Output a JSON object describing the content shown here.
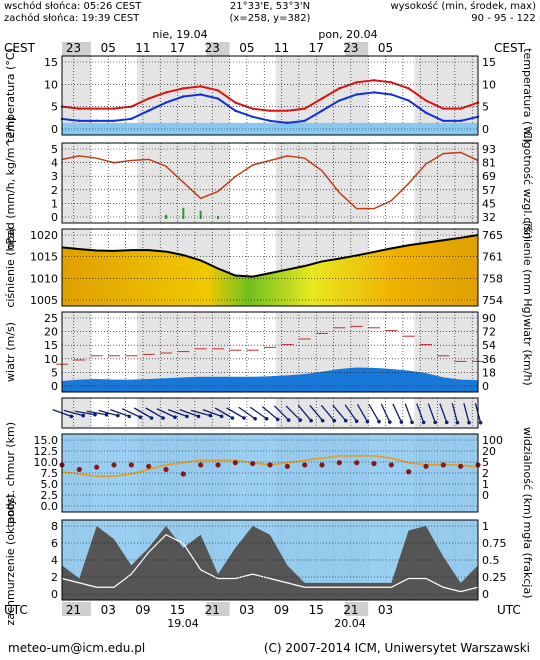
{
  "header": {
    "sunrise": "wschód słońca: 05:26 CEST",
    "sunset": "zachód słońca: 19:39 CEST",
    "coords": "21°33'E, 53°3'N",
    "grid": "(x=258, y=382)",
    "altitude_label": "wysokość (min, środek, max)",
    "altitude_values": "90 - 95 - 122 m"
  },
  "top_axis": {
    "tz": "CEST",
    "hours": [
      "23",
      "05",
      "11",
      "17",
      "23",
      "05",
      "11",
      "17",
      "23",
      "05"
    ],
    "days": [
      "nie, 19.04",
      "pon, 20.04"
    ]
  },
  "bottom_axis": {
    "tz": "UTC",
    "hours": [
      "21",
      "03",
      "09",
      "15",
      "21",
      "03",
      "09",
      "15",
      "21",
      "03"
    ],
    "days": [
      "19.04",
      "20.04"
    ]
  },
  "footer": {
    "email": "meteo-um@icm.edu.pl",
    "copyright": "(C) 2007-2014 ICM, Uniwersytet Warszawski"
  },
  "colors": {
    "sky": "#89c7ee",
    "night": "#cfcfcf",
    "day": "#ffffff",
    "temp": "#e01010",
    "dew": "#1030e0",
    "humidity": "#c0401a",
    "precip": "#2a9a2a",
    "pressure_line": "#000000",
    "wind_avg": "#1878d8",
    "visibility": "#e0a030"
  },
  "chart_data": [
    {
      "type": "line",
      "panel": "temperature",
      "ylabel": "temperatura (°C)",
      "ylabel_right": "temperatura (°C)",
      "ylim": [
        -2,
        15
      ],
      "yticks_left": [
        "15",
        "10",
        "5",
        "0"
      ],
      "yticks_right": [
        "15",
        "10",
        "5",
        "0"
      ],
      "x": [
        0,
        3,
        6,
        9,
        12,
        15,
        18,
        21,
        24,
        27,
        30,
        33,
        36,
        39,
        42,
        45,
        48,
        51,
        54,
        57,
        60,
        63,
        66,
        69,
        72
      ],
      "series": [
        {
          "values": [
            4,
            3.5,
            3.5,
            3.5,
            4,
            6,
            7.5,
            8.5,
            9,
            8,
            5,
            3.5,
            3,
            3,
            3.5,
            6,
            8.5,
            10,
            10.5,
            10,
            8.5,
            5.5,
            3.5,
            3.5,
            5
          ]
        },
        {
          "values": [
            1,
            0.5,
            0.5,
            0.5,
            1,
            3,
            5,
            6.5,
            7,
            6,
            3,
            1.5,
            0.5,
            0,
            0.5,
            3,
            5.5,
            7,
            7.5,
            7,
            5.5,
            2.5,
            0.5,
            0.5,
            1.5
          ]
        }
      ]
    },
    {
      "type": "line",
      "panel": "precipitation-humidity",
      "ylabel": "opad (mm/h, kg/m^2/h)",
      "ylabel_right": "wilgotność wzgl. (%)",
      "ylim": [
        0,
        5
      ],
      "yticks_left": [
        "5",
        "4",
        "3",
        "2",
        "1",
        "0"
      ],
      "yticks_right": [
        "93",
        "81",
        "69",
        "57",
        "45",
        "32"
      ],
      "x": [
        0,
        3,
        6,
        9,
        12,
        15,
        18,
        21,
        24,
        27,
        30,
        33,
        36,
        39,
        42,
        45,
        48,
        51,
        54,
        57,
        60,
        63,
        66,
        69,
        72
      ],
      "series": [
        {
          "values": [
            84,
            87,
            85,
            81,
            83,
            84,
            78,
            64,
            50,
            56,
            69,
            79,
            83,
            87,
            85,
            74,
            55,
            41,
            41,
            48,
            63,
            80,
            89,
            90,
            83
          ]
        },
        {
          "values": [
            0,
            0,
            0,
            0,
            0,
            0,
            0.3,
            0.8,
            0.6,
            0.2,
            0,
            0,
            0,
            0,
            0,
            0,
            0,
            0,
            0,
            0,
            0,
            0,
            0,
            0,
            0
          ]
        }
      ]
    },
    {
      "type": "area",
      "panel": "pressure",
      "ylabel": "ciśnienie (hPa)",
      "ylabel_right": "ciśnienie (mm Hg)",
      "ylim": [
        1003,
        1022
      ],
      "yticks_left": [
        "1020",
        "1015",
        "1010",
        "1005"
      ],
      "yticks_right": [
        "765",
        "761",
        "758",
        "754"
      ],
      "x": [
        0,
        3,
        6,
        9,
        12,
        15,
        18,
        21,
        24,
        27,
        30,
        33,
        36,
        39,
        42,
        45,
        48,
        51,
        54,
        57,
        60,
        63,
        66,
        69,
        72
      ],
      "values": [
        1018.5,
        1018,
        1017.6,
        1017.5,
        1017.7,
        1017.7,
        1017.3,
        1016.3,
        1014.8,
        1012.5,
        1010.5,
        1010.2,
        1011.2,
        1012.2,
        1013.2,
        1014.5,
        1015.3,
        1016.2,
        1017.2,
        1018.2,
        1019.1,
        1019.8,
        1020.5,
        1021.2,
        1022
      ]
    },
    {
      "type": "area",
      "panel": "wind",
      "ylabel": "wiatr (m/s)",
      "ylabel_right": "wiatr (km/h)",
      "ylim": [
        0,
        25
      ],
      "yticks_left": [
        "25",
        "20",
        "15",
        "10",
        "5",
        "0"
      ],
      "yticks_right": [
        "90",
        "72",
        "54",
        "36",
        "18",
        "0"
      ],
      "x": [
        0,
        3,
        6,
        9,
        12,
        15,
        18,
        21,
        24,
        27,
        30,
        33,
        36,
        39,
        42,
        45,
        48,
        51,
        54,
        57,
        60,
        63,
        66,
        69,
        72
      ],
      "series": [
        {
          "values": [
            2.5,
            3,
            3.2,
            3,
            3,
            3.2,
            3.5,
            3.8,
            4,
            4,
            4,
            4,
            4.2,
            4.5,
            5,
            5.8,
            6.8,
            7.3,
            7.2,
            6.8,
            6.2,
            5.3,
            3.8,
            3,
            2.8
          ]
        },
        {
          "values": [
            8.5,
            10,
            11.5,
            11.5,
            11.5,
            12,
            12.5,
            13,
            14,
            14,
            13.5,
            13.5,
            14.5,
            15.5,
            17.5,
            19.5,
            21.5,
            22,
            21.5,
            20.5,
            18.5,
            15.5,
            11.5,
            9.5,
            9.5
          ]
        }
      ]
    },
    {
      "type": "scatter",
      "panel": "wind-direction",
      "ylabel": "",
      "x": [
        0,
        2,
        4,
        6,
        8,
        10,
        12,
        14,
        16,
        18,
        20,
        22,
        24,
        26,
        28,
        30,
        32,
        34,
        36,
        38,
        40,
        42,
        44,
        46,
        48,
        50,
        52,
        54,
        56,
        58,
        60,
        62,
        64,
        66,
        68,
        70,
        72
      ],
      "values": [
        290,
        285,
        280,
        280,
        285,
        290,
        295,
        300,
        300,
        295,
        290,
        290,
        285,
        290,
        300,
        300,
        305,
        305,
        310,
        315,
        315,
        320,
        320,
        320,
        320,
        325,
        330,
        330,
        335,
        335,
        340,
        340,
        340,
        340,
        345,
        345,
        345
      ]
    },
    {
      "type": "scatter",
      "panel": "cloud-visibility",
      "ylabel": "podst. chmur (km)",
      "ylabel_right": "widzialność (km)",
      "ylim": [
        0,
        15
      ],
      "yticks_left": [
        "15.0",
        "12.5",
        "10.0",
        "7.5",
        "5.0",
        "2.5",
        "0.0"
      ],
      "yticks_right": [
        "100",
        "20",
        "5",
        "2",
        "1",
        "0"
      ],
      "x": [
        0,
        3,
        6,
        9,
        12,
        15,
        18,
        21,
        24,
        27,
        30,
        33,
        36,
        39,
        42,
        45,
        48,
        51,
        54,
        57,
        60,
        63,
        66,
        69,
        72
      ],
      "series": [
        {
          "values": [
            9.5,
            8.5,
            9,
            9.5,
            9.5,
            9.2,
            8.5,
            7.5,
            9.5,
            9.5,
            10,
            9.8,
            9.5,
            9.2,
            9.5,
            9.5,
            10,
            10,
            9.8,
            9.5,
            8,
            9.2,
            9.5,
            9.2,
            9.5
          ]
        },
        {
          "values": [
            8,
            7.5,
            7,
            7,
            7.5,
            8.5,
            9.5,
            10,
            10.5,
            10.5,
            10.5,
            10,
            9.5,
            10,
            10.5,
            11,
            11.5,
            11.5,
            11.5,
            11,
            10,
            9.5,
            9.5,
            9.5,
            9
          ]
        }
      ]
    },
    {
      "type": "area",
      "panel": "cloudiness-fog",
      "ylabel": "zachmurzenie (oktanty)",
      "ylabel_right": "mgła (frakcja)",
      "ylim": [
        0,
        8
      ],
      "yticks_left": [
        "8",
        "6",
        "4",
        "2",
        "0"
      ],
      "yticks_right": [
        "1",
        "0.75",
        "0.5",
        "0.25",
        "0"
      ],
      "x": [
        0,
        3,
        6,
        9,
        12,
        15,
        18,
        21,
        24,
        27,
        30,
        33,
        36,
        39,
        42,
        45,
        48,
        51,
        54,
        57,
        60,
        63,
        66,
        69,
        72
      ],
      "series": [
        {
          "values": [
            3.5,
            2,
            8,
            6.5,
            3.5,
            5.5,
            8,
            5.5,
            7,
            2.5,
            5.5,
            8,
            7,
            3.5,
            1.5,
            1.5,
            1.5,
            1.5,
            1.5,
            1.5,
            7.5,
            8,
            4.5,
            1.5,
            3.5
          ]
        },
        {
          "values": [
            2,
            1.5,
            1,
            1,
            2.5,
            5,
            7,
            6,
            3,
            2,
            2,
            2.5,
            2,
            1.5,
            1,
            1,
            1,
            1,
            1,
            1,
            2,
            2,
            1,
            0.5,
            1
          ]
        }
      ]
    }
  ]
}
